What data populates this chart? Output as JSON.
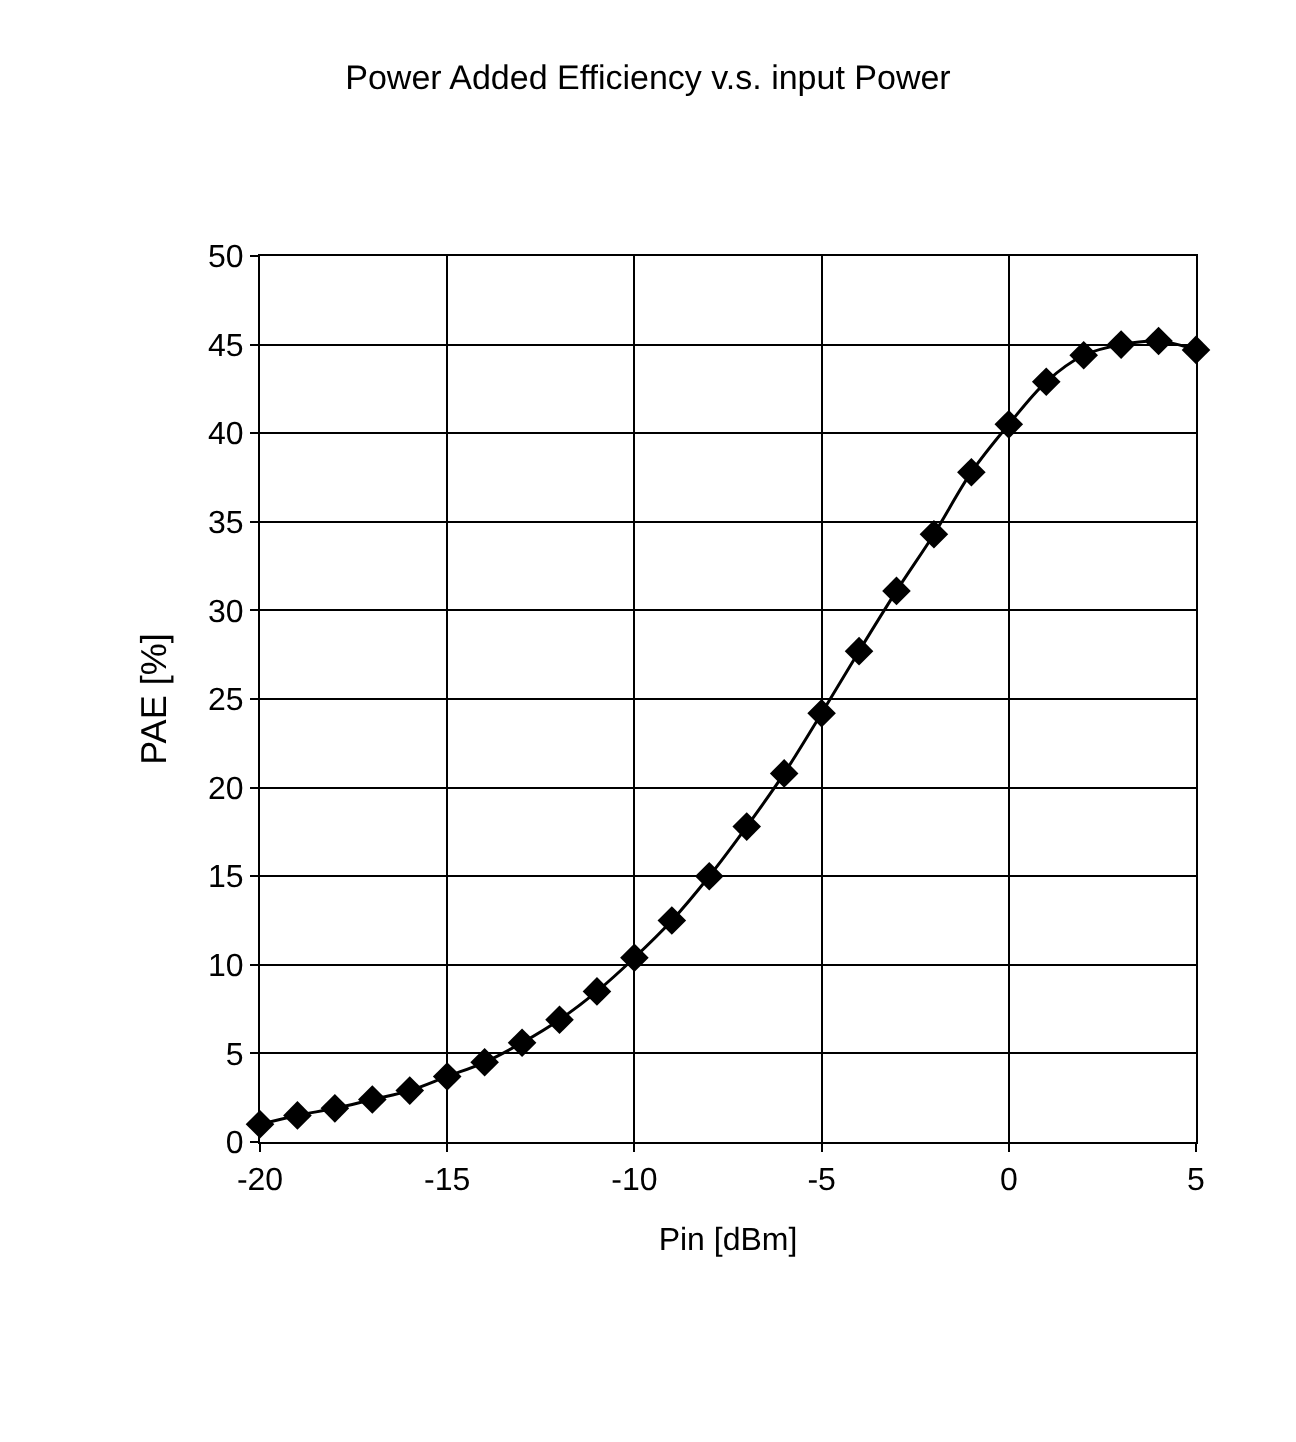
{
  "chart_data": {
    "type": "line",
    "title": "Power Added Efficiency v.s. input Power",
    "xlabel": "Pin [dBm]",
    "ylabel": "PAE [%]",
    "x": [
      -20,
      -19,
      -18,
      -17,
      -16,
      -15,
      -14,
      -13,
      -12,
      -11,
      -10,
      -9,
      -8,
      -7,
      -6,
      -5,
      -4,
      -3,
      -2,
      -1,
      0,
      1,
      2,
      3,
      4,
      5
    ],
    "series": [
      {
        "color": "#000000",
        "values": [
          1.0,
          1.5,
          1.9,
          2.4,
          2.9,
          3.7,
          4.5,
          5.6,
          6.9,
          8.5,
          10.4,
          12.5,
          15.0,
          17.8,
          20.8,
          24.2,
          27.7,
          31.1,
          34.3,
          37.8,
          40.5,
          42.9,
          44.4,
          45.0,
          45.2,
          44.7
        ]
      }
    ],
    "xlim": [
      -20,
      5
    ],
    "xticks": [
      -20,
      -15,
      -10,
      -5,
      0,
      5
    ],
    "ylim": [
      0,
      50
    ],
    "yticks": [
      0,
      5,
      10,
      15,
      20,
      25,
      30,
      35,
      40,
      45,
      50
    ],
    "grid": true,
    "legend": false,
    "marker": "diamond",
    "line_style": "solid"
  }
}
